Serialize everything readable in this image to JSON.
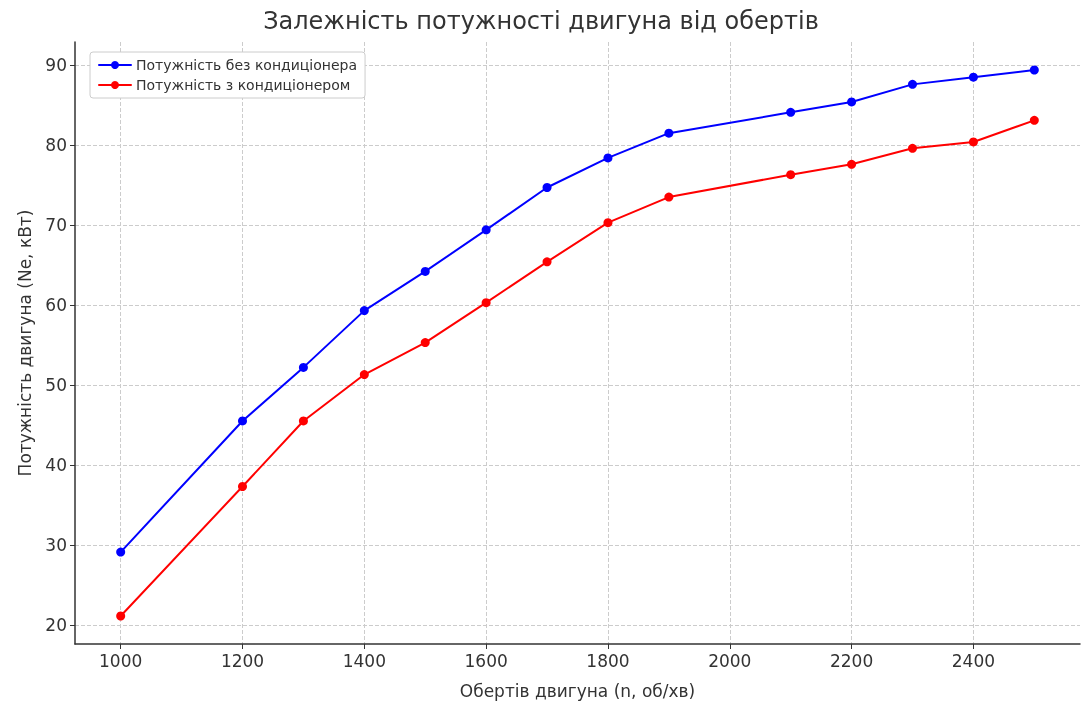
{
  "chart_data": {
    "type": "line",
    "title": "Залежність потужності двигуна від обертів",
    "xlabel": "Обертів двигуна (n, об/хв)",
    "ylabel": "Потужність двигуна (Ne, кВт)",
    "x": [
      1000,
      1200,
      1300,
      1400,
      1500,
      1600,
      1700,
      1800,
      1900,
      2100,
      2200,
      2300,
      2400,
      2500
    ],
    "series": [
      {
        "name": "Потужність без кондиціонера",
        "color": "#0000ff",
        "values": [
          29.1,
          45.5,
          52.2,
          59.3,
          64.2,
          69.4,
          74.7,
          78.4,
          81.5,
          84.1,
          85.4,
          87.6,
          88.5,
          89.4
        ]
      },
      {
        "name": "Потужність з кондиціонером",
        "color": "#ff0000",
        "values": [
          21.1,
          37.3,
          45.5,
          51.3,
          55.3,
          60.3,
          65.4,
          70.3,
          73.5,
          76.3,
          77.6,
          79.6,
          80.4,
          83.1
        ]
      }
    ],
    "xlim": [
      925,
      2575
    ],
    "xticks": [
      1000,
      1200,
      1400,
      1600,
      1800,
      2000,
      2200,
      2400
    ],
    "ylim": [
      17.6,
      92.9
    ],
    "yticks": [
      20,
      30,
      40,
      50,
      60,
      70,
      80,
      90
    ],
    "grid": true,
    "legend": "top left",
    "marker": "circle",
    "line_style": "solid"
  }
}
